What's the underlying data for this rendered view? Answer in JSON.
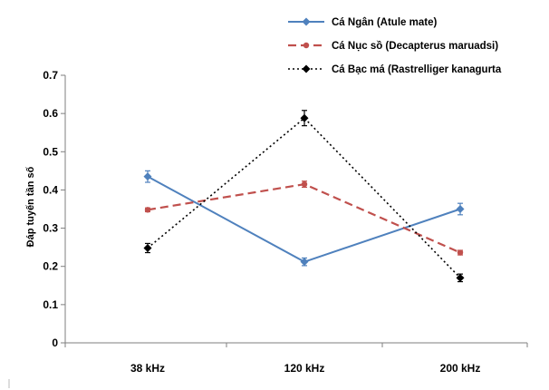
{
  "chart_data": {
    "type": "line",
    "categories": [
      "38 kHz",
      "120 kHz",
      "200 kHz"
    ],
    "ylabel": "Đáp tuyến tần số",
    "ylim": [
      0,
      0.7
    ],
    "yticks": [
      "0",
      "0.1",
      "0.2",
      "0.3",
      "0.4",
      "0.5",
      "0.6",
      "0.7"
    ],
    "grid": false,
    "legend_position": "top-right",
    "series": [
      {
        "name": "Cá Ngân (Atule mate)",
        "values": [
          0.435,
          0.212,
          0.35
        ],
        "errors": [
          0.015,
          0.01,
          0.015
        ],
        "color": "#4F81BD",
        "line_style": "solid",
        "marker": "diamond"
      },
      {
        "name": "Cá Nục sồ (Decapterus maruadsi)",
        "values": [
          0.348,
          0.415,
          0.236
        ],
        "errors": [
          0.005,
          0.008,
          0.006
        ],
        "color": "#C0504D",
        "line_style": "dashed",
        "marker": "circle"
      },
      {
        "name": "Cá Bạc má (Rastrelliger kanagurta",
        "values": [
          0.248,
          0.588,
          0.17
        ],
        "errors": [
          0.012,
          0.02,
          0.01
        ],
        "color": "#000000",
        "line_style": "dotted",
        "marker": "diamond"
      }
    ]
  }
}
